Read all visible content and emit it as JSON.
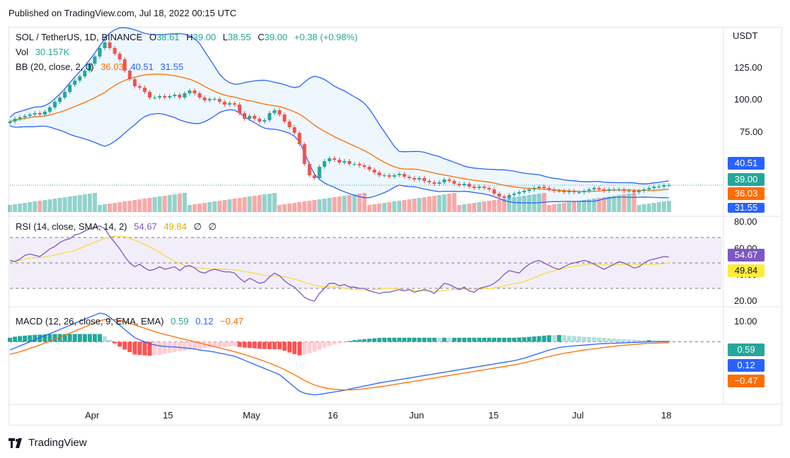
{
  "header": {
    "published": "Published on TradingView.com, Jul 18, 2022 00:15 UTC"
  },
  "legend": {
    "symbol": "SOL / TetherUS, 1D, BINANCE",
    "o_label": "O",
    "o_val": "38.61",
    "h_label": "H",
    "h_val": "39.00",
    "l_label": "L",
    "l_val": "38.55",
    "c_label": "C",
    "c_val": "39.00",
    "change": "+0.38 (+0.98%)",
    "vol_label": "Vol",
    "vol_val": "30.157K",
    "bb_label": "BB (20, close, 2, 0)",
    "bb_mid": "36.03",
    "bb_up": "40.51",
    "bb_low": "31.55",
    "rsi_label": "RSI (14, close, SMA, 14, 2)",
    "rsi_val": "54.67",
    "rsi_ma": "49.84",
    "rsi_n1": "∅",
    "rsi_n2": "∅",
    "macd_label": "MACD (12, 26, close, 9, EMA, EMA)",
    "macd_hist": "0.59",
    "macd_line": "0.12",
    "macd_signal": "−0.47"
  },
  "currency": "USDT",
  "price_axis": [
    "125.00",
    "100.00",
    "75.00"
  ],
  "rsi_axis": [
    "80.00",
    "60.00",
    "40.00",
    "20.00"
  ],
  "macd_axis": [
    "10.00"
  ],
  "badges": {
    "bb_up": "40.51",
    "close": "39.00",
    "bb_mid": "36.03",
    "bb_low": "31.55",
    "rsi": "54.67",
    "rsi_ma": "49.84",
    "macd_hist": "0.59",
    "macd_line": "0.12",
    "macd_signal": "−0.47"
  },
  "time_axis": [
    "Apr",
    "15",
    "May",
    "16",
    "Jun",
    "15",
    "Jul",
    "18"
  ],
  "footer": {
    "brand": "TradingView"
  },
  "colors": {
    "up": "#26a69a",
    "down": "#ef5350",
    "bb_band": "#2962ff",
    "bb_basis": "#ff6d00",
    "rsi": "#7e57c2",
    "rsi_ma": "#fdd835",
    "macd": "#2962ff",
    "signal": "#ff6d00"
  },
  "chart_data": {
    "type": "candlestick",
    "title": "SOL / TetherUS, 1D, BINANCE",
    "price_range": [
      20,
      150
    ],
    "closes": [
      84,
      86,
      87,
      88,
      89,
      90,
      89,
      91,
      94,
      98,
      101,
      105,
      110,
      113,
      116,
      120,
      125,
      130,
      136,
      140,
      136,
      132,
      128,
      120,
      114,
      109,
      108,
      105,
      101,
      101,
      102,
      101,
      102,
      103,
      101,
      104,
      106,
      104,
      101,
      99,
      100,
      100,
      98,
      96,
      97,
      96,
      90,
      86,
      88,
      86,
      84,
      85,
      90,
      92,
      89,
      84,
      80,
      76,
      68,
      54,
      46,
      44,
      52,
      56,
      58,
      57,
      55,
      56,
      54,
      54,
      53,
      52,
      50,
      48,
      46,
      46,
      45,
      46,
      47,
      45,
      44,
      43,
      44,
      42,
      41,
      40,
      41,
      43,
      42,
      40,
      39,
      40,
      38,
      37,
      38,
      37,
      36,
      33,
      31,
      30,
      32,
      33,
      34,
      35,
      36,
      37,
      38,
      37,
      36,
      35,
      35,
      34,
      35,
      34,
      34,
      35,
      36,
      37,
      36,
      35,
      36,
      36,
      36,
      35,
      35,
      34,
      35,
      36,
      37,
      38,
      38,
      39,
      39
    ],
    "rsi_range": [
      20,
      80
    ],
    "rsi_levels": [
      70,
      50,
      30
    ],
    "rsi": [
      52,
      51,
      53,
      56,
      57,
      56,
      55,
      58,
      61,
      63,
      66,
      68,
      69,
      72,
      73,
      75,
      77,
      78,
      79,
      77,
      71,
      66,
      61,
      55,
      50,
      47,
      49,
      46,
      44,
      45,
      47,
      45,
      46,
      47,
      44,
      47,
      48,
      46,
      43,
      42,
      44,
      45,
      44,
      43,
      43,
      42,
      38,
      35,
      38,
      36,
      34,
      35,
      39,
      42,
      40,
      36,
      33,
      31,
      27,
      23,
      21,
      20,
      26,
      30,
      34,
      34,
      32,
      33,
      31,
      31,
      30,
      30,
      28,
      27,
      26,
      27,
      27,
      28,
      29,
      28,
      29,
      27,
      28,
      29,
      28,
      26,
      30,
      34,
      33,
      31,
      29,
      31,
      28,
      27,
      30,
      31,
      32,
      34,
      37,
      41,
      44,
      43,
      42,
      46,
      49,
      51,
      52,
      50,
      48,
      46,
      45,
      47,
      49,
      50,
      51,
      52,
      51,
      49,
      47,
      45,
      47,
      49,
      51,
      50,
      48,
      46,
      47,
      50,
      52,
      53,
      54,
      55,
      54.67
    ],
    "macd_range": [
      -28,
      15
    ],
    "macd": [
      -4,
      -3,
      -2,
      -1,
      0,
      1,
      2,
      3,
      4,
      5,
      6,
      7,
      8,
      9,
      10,
      11,
      12,
      13,
      14,
      13.5,
      12,
      10,
      8,
      6,
      4,
      2,
      1,
      0,
      -1,
      -1.5,
      -2,
      -2.2,
      -2.4,
      -2.5,
      -2.7,
      -3,
      -3.2,
      -3.5,
      -4,
      -4.3,
      -4.6,
      -5,
      -5.5,
      -6,
      -6.5,
      -7,
      -8,
      -9,
      -10,
      -11,
      -12,
      -13,
      -14,
      -15,
      -16,
      -18,
      -20,
      -22,
      -24,
      -25,
      -25.5,
      -25.8,
      -25.6,
      -25.2,
      -24.8,
      -24.4,
      -24,
      -23.6,
      -23,
      -22.5,
      -22,
      -21.5,
      -21,
      -20.5,
      -20,
      -19.6,
      -19.2,
      -18.8,
      -18.4,
      -18,
      -17.6,
      -17.2,
      -16.8,
      -16.4,
      -16,
      -15.6,
      -15.2,
      -14.8,
      -14.4,
      -14,
      -13.6,
      -13.2,
      -12.8,
      -12.4,
      -12,
      -11.6,
      -11.2,
      -10.8,
      -10.4,
      -10,
      -9.6,
      -9.2,
      -8.6,
      -8,
      -7.2,
      -6.4,
      -5.6,
      -4.8,
      -4,
      -3.4,
      -2.8,
      -2.4,
      -2.2,
      -2,
      -1.8,
      -1.6,
      -1.4,
      -1.2,
      -1,
      -0.9,
      -0.8,
      -0.7,
      -0.6,
      -0.5,
      -0.4,
      -0.3,
      -0.2,
      -0.1,
      0,
      0.05,
      0.08,
      0.1,
      0.12
    ],
    "signal": [
      -6,
      -5.5,
      -4.8,
      -4,
      -3.2,
      -2.4,
      -1.5,
      -0.6,
      0.3,
      1.2,
      2.2,
      3.2,
      4.2,
      5.2,
      6.2,
      7.2,
      8.2,
      9.2,
      10.2,
      10.8,
      11,
      10.8,
      10.4,
      9.8,
      9,
      8.2,
      7.4,
      6.6,
      5.8,
      5,
      4.3,
      3.6,
      3,
      2.4,
      1.8,
      1.2,
      0.6,
      0,
      -0.6,
      -1.2,
      -1.8,
      -2.4,
      -3,
      -3.6,
      -4.2,
      -4.8,
      -5.5,
      -6.2,
      -7,
      -7.8,
      -8.6,
      -9.5,
      -10.4,
      -11.4,
      -12.4,
      -13.6,
      -14.8,
      -16,
      -17.4,
      -18.8,
      -20,
      -21,
      -21.8,
      -22.4,
      -22.8,
      -23.1,
      -23.3,
      -23.4,
      -23.4,
      -23.3,
      -23.1,
      -22.8,
      -22.5,
      -22.2,
      -21.9,
      -21.6,
      -21.2,
      -20.8,
      -20.4,
      -20,
      -19.6,
      -19.2,
      -18.8,
      -18.4,
      -18,
      -17.6,
      -17.2,
      -16.8,
      -16.4,
      -16,
      -15.6,
      -15.2,
      -14.8,
      -14.4,
      -14,
      -13.6,
      -13.2,
      -12.8,
      -12.4,
      -12,
      -11.6,
      -11.2,
      -10.7,
      -10.2,
      -9.6,
      -9,
      -8.4,
      -7.8,
      -7.2,
      -6.6,
      -6.1,
      -5.6,
      -5.2,
      -4.8,
      -4.4,
      -4,
      -3.7,
      -3.4,
      -3.1,
      -2.8,
      -2.5,
      -2.2,
      -1.9,
      -1.7,
      -1.5,
      -1.3,
      -1.1,
      -0.9,
      -0.8,
      -0.7,
      -0.6,
      -0.52,
      -0.47
    ]
  }
}
